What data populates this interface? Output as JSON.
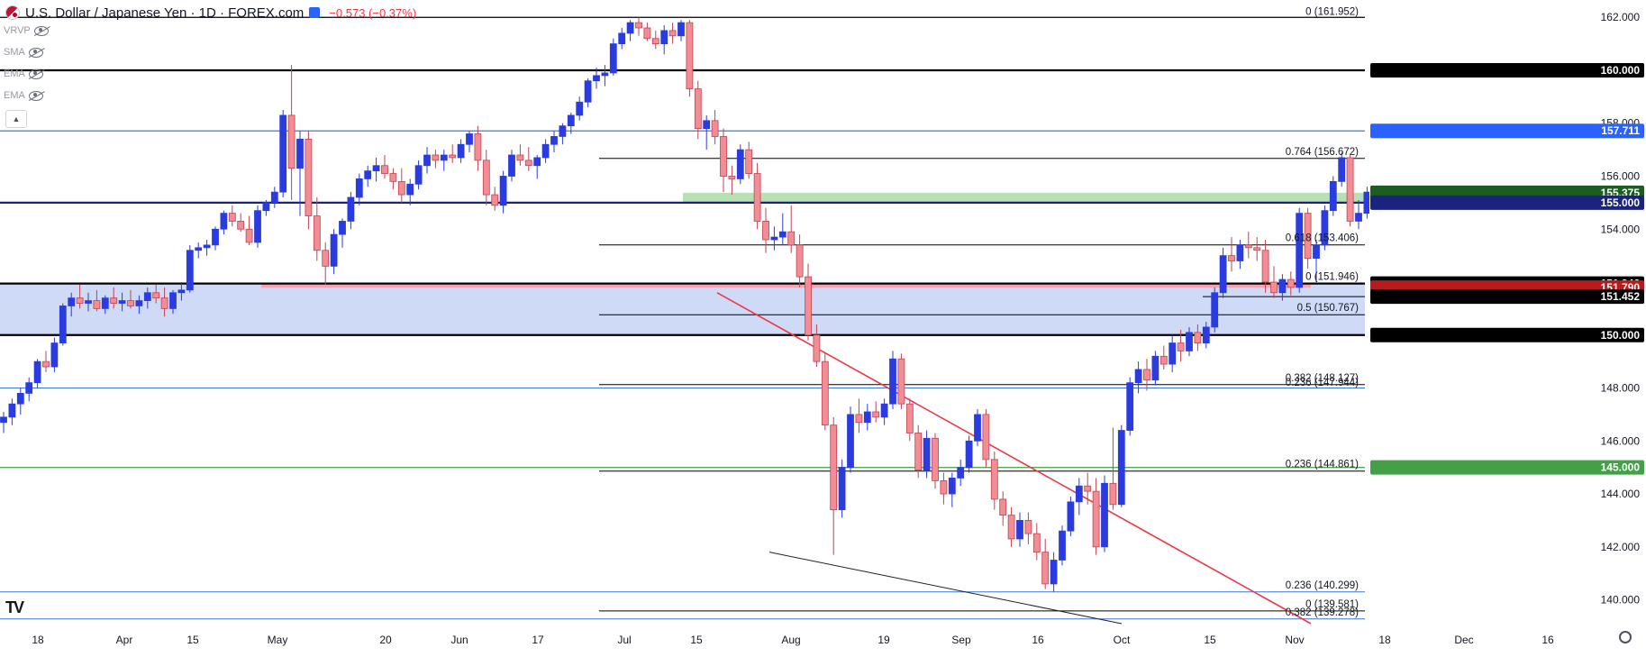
{
  "header": {
    "symbol": "U.S. Dollar / Japanese Yen · 1D · FOREX.com",
    "change": "−0.573 (−0.37%)"
  },
  "indicators": [
    {
      "label": "VRVP"
    },
    {
      "label": "SMA"
    },
    {
      "label": "EMA"
    },
    {
      "label": "EMA"
    }
  ],
  "colors": {
    "up": "#2a3ce0",
    "down": "#f28d95",
    "down_border": "#c2424f",
    "level": "#000000",
    "blue_line": "#3c78d8",
    "green_line": "#4caf50",
    "trendline": "#f23645",
    "band": "#c5d3f5",
    "zone_green": "#b7e1b4",
    "zone_pink": "#f4a3b5"
  },
  "chart_data": {
    "type": "candlestick",
    "title": "U.S. Dollar / Japanese Yen · 1D · FOREX.com",
    "ylim": [
      139.1,
      162.3
    ],
    "y_ticks": [
      "140.000",
      "142.000",
      "144.000",
      "146.000",
      "148.000",
      "150.000",
      "152.000",
      "154.000",
      "156.000",
      "158.000",
      "160.000",
      "162.000"
    ],
    "x_ticks": [
      "18",
      "Apr",
      "15",
      "May",
      "20",
      "Jun",
      "17",
      "Jul",
      "15",
      "Aug",
      "19",
      "Sep",
      "16",
      "Oct",
      "15",
      "Nov",
      "18",
      "Dec",
      "16"
    ],
    "price_labels": [
      {
        "text": "160.000",
        "value": 160.0,
        "style": "black"
      },
      {
        "text": "157.711",
        "value": 157.711,
        "style": "blue"
      },
      {
        "text": "155.375",
        "value": 155.375,
        "style": "darkgreen"
      },
      {
        "text": "155.000",
        "value": 155.0,
        "style": "navy"
      },
      {
        "text": "151.946",
        "value": 151.946,
        "style": "black"
      },
      {
        "text": "151.790",
        "value": 151.79,
        "style": "red"
      },
      {
        "text": "151.452",
        "value": 151.452,
        "style": "black"
      },
      {
        "text": "150.000",
        "value": 150.0,
        "style": "black"
      },
      {
        "text": "145.000",
        "value": 145.0,
        "style": "green"
      }
    ],
    "fib_labels": [
      {
        "text": "0 (161.952)",
        "value": 161.952
      },
      {
        "text": "0.764 (156.672)",
        "value": 156.672
      },
      {
        "text": "0.618 (153.406)",
        "value": 153.406
      },
      {
        "text": "0 (151.946)",
        "value": 151.946
      },
      {
        "text": "0.5 (150.767)",
        "value": 150.767
      },
      {
        "text": "0.382 (148.127)",
        "value": 148.127
      },
      {
        "text": "0.236 (147.944)",
        "value": 147.944
      },
      {
        "text": "0.236 (144.861)",
        "value": 144.861
      },
      {
        "text": "0.236 (140.299)",
        "value": 140.299
      },
      {
        "text": "0 (139.581)",
        "value": 139.581
      },
      {
        "text": "0.382 (139.278)",
        "value": 139.278
      }
    ],
    "candles": [
      [
        146.7,
        147.1,
        146.3,
        146.9
      ],
      [
        146.9,
        147.6,
        146.6,
        147.4
      ],
      [
        147.4,
        148.0,
        147.0,
        147.8
      ],
      [
        147.8,
        148.4,
        147.5,
        148.2
      ],
      [
        148.2,
        149.1,
        148.0,
        149.0
      ],
      [
        149.0,
        149.4,
        148.6,
        148.8
      ],
      [
        148.8,
        149.9,
        148.6,
        149.7
      ],
      [
        149.7,
        151.2,
        149.6,
        151.1
      ],
      [
        151.1,
        151.6,
        150.7,
        151.4
      ],
      [
        151.4,
        151.9,
        151.0,
        151.2
      ],
      [
        151.2,
        151.6,
        150.9,
        151.3
      ],
      [
        151.3,
        151.7,
        150.9,
        151.0
      ],
      [
        151.0,
        151.5,
        150.8,
        151.4
      ],
      [
        151.4,
        151.8,
        151.0,
        151.2
      ],
      [
        151.2,
        151.6,
        150.9,
        151.3
      ],
      [
        151.3,
        151.7,
        151.0,
        151.1
      ],
      [
        151.1,
        151.5,
        150.8,
        151.3
      ],
      [
        151.3,
        151.8,
        151.0,
        151.6
      ],
      [
        151.6,
        151.9,
        151.2,
        151.4
      ],
      [
        151.4,
        151.8,
        150.7,
        151.0
      ],
      [
        151.0,
        151.7,
        150.8,
        151.6
      ],
      [
        151.6,
        152.0,
        151.3,
        151.7
      ],
      [
        151.7,
        153.4,
        151.6,
        153.2
      ],
      [
        153.2,
        153.5,
        152.9,
        153.3
      ],
      [
        153.3,
        153.6,
        153.0,
        153.4
      ],
      [
        153.4,
        154.1,
        153.2,
        154.0
      ],
      [
        154.0,
        154.7,
        153.8,
        154.6
      ],
      [
        154.6,
        154.9,
        154.1,
        154.3
      ],
      [
        154.3,
        154.6,
        153.9,
        154.0
      ],
      [
        154.0,
        154.5,
        153.4,
        153.5
      ],
      [
        153.5,
        154.9,
        153.3,
        154.7
      ],
      [
        154.7,
        155.1,
        154.5,
        155.0
      ],
      [
        155.0,
        155.6,
        154.8,
        155.4
      ],
      [
        155.4,
        158.5,
        155.2,
        158.3
      ],
      [
        158.3,
        160.2,
        155.1,
        156.3
      ],
      [
        156.3,
        157.7,
        154.5,
        157.4
      ],
      [
        157.4,
        157.7,
        154.0,
        154.5
      ],
      [
        154.5,
        155.2,
        152.8,
        153.2
      ],
      [
        153.2,
        153.5,
        151.9,
        152.6
      ],
      [
        152.6,
        154.0,
        152.3,
        153.8
      ],
      [
        153.8,
        154.4,
        153.3,
        154.3
      ],
      [
        154.3,
        155.4,
        154.0,
        155.2
      ],
      [
        155.2,
        156.1,
        154.9,
        155.9
      ],
      [
        155.9,
        156.4,
        155.6,
        156.2
      ],
      [
        156.2,
        156.7,
        155.8,
        156.4
      ],
      [
        156.4,
        156.8,
        155.9,
        156.1
      ],
      [
        156.1,
        156.3,
        155.5,
        155.8
      ],
      [
        155.8,
        156.3,
        155.0,
        155.3
      ],
      [
        155.3,
        155.9,
        154.9,
        155.7
      ],
      [
        155.7,
        156.6,
        155.5,
        156.4
      ],
      [
        156.4,
        157.1,
        156.1,
        156.8
      ],
      [
        156.8,
        157.0,
        156.3,
        156.6
      ],
      [
        156.6,
        157.0,
        156.2,
        156.8
      ],
      [
        156.8,
        157.2,
        156.5,
        156.7
      ],
      [
        156.7,
        157.4,
        156.5,
        157.2
      ],
      [
        157.2,
        157.7,
        156.9,
        157.6
      ],
      [
        157.6,
        157.9,
        156.2,
        156.6
      ],
      [
        156.6,
        157.0,
        154.9,
        155.3
      ],
      [
        155.3,
        155.6,
        154.7,
        154.9
      ],
      [
        154.9,
        156.2,
        154.6,
        156.0
      ],
      [
        156.0,
        157.0,
        155.8,
        156.8
      ],
      [
        156.8,
        157.2,
        156.4,
        156.6
      ],
      [
        156.6,
        157.1,
        156.2,
        156.4
      ],
      [
        156.4,
        156.8,
        155.9,
        156.7
      ],
      [
        156.7,
        157.4,
        156.5,
        157.2
      ],
      [
        157.2,
        157.7,
        156.9,
        157.5
      ],
      [
        157.5,
        158.0,
        157.2,
        157.9
      ],
      [
        157.9,
        158.4,
        157.6,
        158.3
      ],
      [
        158.3,
        159.0,
        158.1,
        158.8
      ],
      [
        158.8,
        159.7,
        158.6,
        159.6
      ],
      [
        159.6,
        160.1,
        159.3,
        159.8
      ],
      [
        159.8,
        160.2,
        159.4,
        159.9
      ],
      [
        159.9,
        161.2,
        159.8,
        161.0
      ],
      [
        161.0,
        161.6,
        160.8,
        161.4
      ],
      [
        161.4,
        161.9,
        161.1,
        161.8
      ],
      [
        161.8,
        162.0,
        161.3,
        161.6
      ],
      [
        161.6,
        161.8,
        161.1,
        161.2
      ],
      [
        161.2,
        161.5,
        160.8,
        161.0
      ],
      [
        161.0,
        161.7,
        160.6,
        161.5
      ],
      [
        161.5,
        161.8,
        161.0,
        161.3
      ],
      [
        161.3,
        161.9,
        161.1,
        161.8
      ],
      [
        161.8,
        161.9,
        159.0,
        159.3
      ],
      [
        159.3,
        159.6,
        157.4,
        157.8
      ],
      [
        157.8,
        158.3,
        157.0,
        158.1
      ],
      [
        158.1,
        158.5,
        157.2,
        157.5
      ],
      [
        157.5,
        157.8,
        155.4,
        156.0
      ],
      [
        156.0,
        156.4,
        155.3,
        155.9
      ],
      [
        155.9,
        157.2,
        155.7,
        157.0
      ],
      [
        157.0,
        157.3,
        155.9,
        156.1
      ],
      [
        156.1,
        156.5,
        154.0,
        154.3
      ],
      [
        154.3,
        154.8,
        153.1,
        153.6
      ],
      [
        153.6,
        154.1,
        153.2,
        153.7
      ],
      [
        153.7,
        154.6,
        153.4,
        153.9
      ],
      [
        153.9,
        154.9,
        153.1,
        153.4
      ],
      [
        153.4,
        153.8,
        151.8,
        152.2
      ],
      [
        152.2,
        152.7,
        149.8,
        150.0
      ],
      [
        150.0,
        150.4,
        148.8,
        149.0
      ],
      [
        149.0,
        149.3,
        146.4,
        146.6
      ],
      [
        146.6,
        146.9,
        141.7,
        143.4
      ],
      [
        143.4,
        145.3,
        143.1,
        145.0
      ],
      [
        145.0,
        147.3,
        144.8,
        147.0
      ],
      [
        147.0,
        147.6,
        146.3,
        146.7
      ],
      [
        146.7,
        147.4,
        146.4,
        147.1
      ],
      [
        147.1,
        147.5,
        146.7,
        146.9
      ],
      [
        146.9,
        147.6,
        146.6,
        147.4
      ],
      [
        147.4,
        149.4,
        147.2,
        149.1
      ],
      [
        149.1,
        149.3,
        147.2,
        147.4
      ],
      [
        147.4,
        147.6,
        146.0,
        146.3
      ],
      [
        146.3,
        146.6,
        144.6,
        144.9
      ],
      [
        144.9,
        146.4,
        144.6,
        146.1
      ],
      [
        146.1,
        146.3,
        144.2,
        144.5
      ],
      [
        144.5,
        144.8,
        143.6,
        144.0
      ],
      [
        144.0,
        144.8,
        143.5,
        144.6
      ],
      [
        144.6,
        145.3,
        144.3,
        145.0
      ],
      [
        145.0,
        146.2,
        144.8,
        146.0
      ],
      [
        146.0,
        147.2,
        145.8,
        147.0
      ],
      [
        147.0,
        147.2,
        145.0,
        145.3
      ],
      [
        145.3,
        145.6,
        143.4,
        143.8
      ],
      [
        143.8,
        144.1,
        142.8,
        143.2
      ],
      [
        143.2,
        143.5,
        142.0,
        142.3
      ],
      [
        142.3,
        143.3,
        142.0,
        143.0
      ],
      [
        143.0,
        143.3,
        142.1,
        142.5
      ],
      [
        142.5,
        142.9,
        141.5,
        141.8
      ],
      [
        141.8,
        142.3,
        140.4,
        140.6
      ],
      [
        140.6,
        141.8,
        140.3,
        141.5
      ],
      [
        141.5,
        142.8,
        141.3,
        142.6
      ],
      [
        142.6,
        143.9,
        142.4,
        143.7
      ],
      [
        143.7,
        144.6,
        143.2,
        144.3
      ],
      [
        144.3,
        144.8,
        143.6,
        144.1
      ],
      [
        144.1,
        144.6,
        141.7,
        142.0
      ],
      [
        142.0,
        144.7,
        141.8,
        144.4
      ],
      [
        144.4,
        146.5,
        143.4,
        143.6
      ],
      [
        143.6,
        146.6,
        143.5,
        146.4
      ],
      [
        146.4,
        148.4,
        146.2,
        148.2
      ],
      [
        148.2,
        149.0,
        147.8,
        148.7
      ],
      [
        148.7,
        149.1,
        147.9,
        148.3
      ],
      [
        148.3,
        149.4,
        148.1,
        149.2
      ],
      [
        149.2,
        149.6,
        148.7,
        148.9
      ],
      [
        148.9,
        150.0,
        148.6,
        149.7
      ],
      [
        149.7,
        150.2,
        149.0,
        149.4
      ],
      [
        149.4,
        150.3,
        149.2,
        150.1
      ],
      [
        150.1,
        150.4,
        149.4,
        149.7
      ],
      [
        149.7,
        150.5,
        149.5,
        150.3
      ],
      [
        150.3,
        151.8,
        150.1,
        151.6
      ],
      [
        151.6,
        153.3,
        151.4,
        153.0
      ],
      [
        153.0,
        153.7,
        152.4,
        152.8
      ],
      [
        152.8,
        153.6,
        152.5,
        153.4
      ],
      [
        153.4,
        153.9,
        152.9,
        153.3
      ],
      [
        153.3,
        153.7,
        152.8,
        153.2
      ],
      [
        153.2,
        153.6,
        151.6,
        152.0
      ],
      [
        152.0,
        152.6,
        151.4,
        151.6
      ],
      [
        151.6,
        152.3,
        151.3,
        152.1
      ],
      [
        152.1,
        152.4,
        151.5,
        151.8
      ],
      [
        151.8,
        154.8,
        151.6,
        154.6
      ],
      [
        154.6,
        154.8,
        152.5,
        152.9
      ],
      [
        152.9,
        153.6,
        152.0,
        153.4
      ],
      [
        153.4,
        154.9,
        153.2,
        154.7
      ],
      [
        154.7,
        156.0,
        154.5,
        155.8
      ],
      [
        155.8,
        156.9,
        155.6,
        156.7
      ],
      [
        156.7,
        156.8,
        154.1,
        154.3
      ],
      [
        154.3,
        155.1,
        154.0,
        154.6
      ],
      [
        154.6,
        155.6,
        154.4,
        155.4
      ],
      [
        155.4,
        155.8,
        154.0,
        154.6
      ],
      [
        154.6,
        155.1,
        153.9,
        154.4
      ]
    ]
  }
}
